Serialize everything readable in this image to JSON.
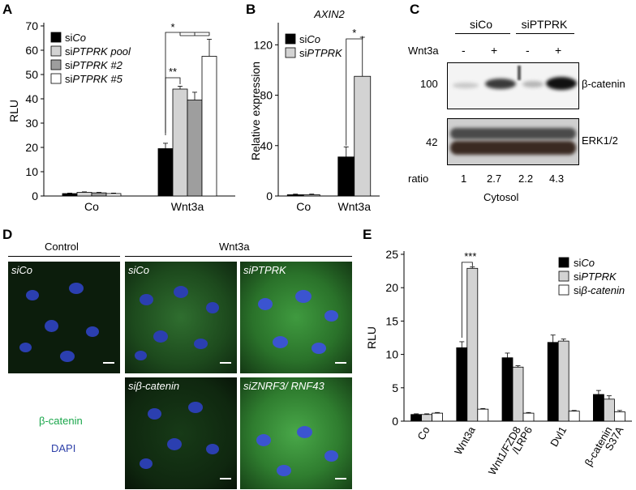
{
  "panels": {
    "A": "A",
    "B": "B",
    "C": "C",
    "D": "D",
    "E": "E"
  },
  "colors": {
    "siCo": "#000000",
    "pool": "#d3d3d3",
    "n2": "#9e9e9e",
    "n5": "#ffffff",
    "green": "#19a64a",
    "dapi": "#2d3fa8"
  },
  "chart_data": [
    {
      "panel": "A",
      "type": "bar",
      "ylabel": "RLU",
      "ylim": [
        0,
        70
      ],
      "yticks": [
        "0",
        "10",
        "20",
        "30",
        "40",
        "50",
        "60",
        "70"
      ],
      "categories": [
        "Co",
        "Wnt3a"
      ],
      "legend": [
        "siCo",
        "siPTPRK pool",
        "siPTPRK #2",
        "siPTPRK #5"
      ],
      "series": [
        {
          "name": "siCo",
          "values": [
            1.0,
            19.5
          ],
          "err": [
            0.2,
            2.2
          ]
        },
        {
          "name": "siPTPRK pool",
          "values": [
            1.5,
            44.0
          ],
          "err": [
            0.2,
            1.2
          ]
        },
        {
          "name": "siPTPRK #2",
          "values": [
            1.3,
            39.5
          ],
          "err": [
            0.2,
            3.2
          ]
        },
        {
          "name": "siPTPRK #5",
          "values": [
            1.0,
            57.5
          ],
          "err": [
            0.2,
            7.0
          ]
        }
      ],
      "annotations": [
        "**",
        "*"
      ]
    },
    {
      "panel": "B",
      "type": "bar",
      "title": "AXIN2",
      "ylabel": "Relative expression",
      "ylim": [
        0,
        135
      ],
      "yticks": [
        "0",
        "40",
        "80",
        "120"
      ],
      "categories": [
        "Co",
        "Wnt3a"
      ],
      "legend": [
        "siCo",
        "siPTPRK"
      ],
      "series": [
        {
          "name": "siCo",
          "values": [
            1,
            31
          ],
          "err": [
            0.5,
            8
          ]
        },
        {
          "name": "siPTPRK",
          "values": [
            1,
            95
          ],
          "err": [
            0.5,
            31
          ]
        }
      ],
      "annotations": [
        "*"
      ]
    },
    {
      "panel": "E",
      "type": "bar",
      "ylabel": "RLU",
      "ylim": [
        0,
        25
      ],
      "yticks": [
        "0",
        "5",
        "10",
        "15",
        "20",
        "25"
      ],
      "categories": [
        "Co",
        "Wnt3a",
        "Wnt1/FZD8 /LRP6",
        "Dvl1",
        "β-catenin S37A"
      ],
      "legend": [
        "siCo",
        "siPTPRK",
        "siβ-catenin"
      ],
      "series": [
        {
          "name": "siCo",
          "values": [
            1.0,
            11.0,
            9.5,
            11.8,
            4.0
          ],
          "err": [
            0.1,
            0.9,
            0.7,
            1.1,
            0.6
          ]
        },
        {
          "name": "siPTPRK",
          "values": [
            1.0,
            22.9,
            8.1,
            12.0,
            3.3
          ],
          "err": [
            0.1,
            0.2,
            0.2,
            0.3,
            0.5
          ]
        },
        {
          "name": "siβ-catenin",
          "values": [
            1.2,
            1.8,
            1.2,
            1.5,
            1.4
          ],
          "err": [
            0.1,
            0.1,
            0.1,
            0.1,
            0.2
          ]
        }
      ],
      "annotations": [
        "***"
      ]
    }
  ],
  "blot": {
    "groups": [
      "siCo",
      "siPTPRK"
    ],
    "wnt_label": "Wnt3a",
    "wnt_signs": [
      "-",
      "+",
      "-",
      "+"
    ],
    "bands": [
      {
        "mw": "100",
        "name": "β-catenin"
      },
      {
        "mw": "42",
        "name": "ERK1/2"
      }
    ],
    "ratio_label": "ratio",
    "ratios": [
      "1",
      "2.7",
      "2.2",
      "4.3"
    ],
    "fraction": "Cytosol"
  },
  "micro": {
    "headers": {
      "control": "Control",
      "wnt": "Wnt3a"
    },
    "tiles": [
      "siCo",
      "siCo",
      "siPTPRK",
      "siβ-catenin",
      "siZNRF3/ RNF43"
    ],
    "stain_green": "β-catenin",
    "stain_blue": "DAPI"
  }
}
